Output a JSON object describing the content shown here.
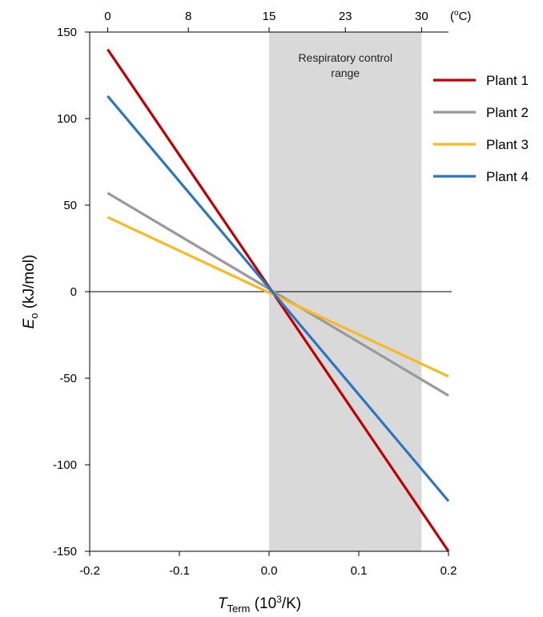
{
  "chart_data": {
    "type": "line",
    "xlabel": {
      "main": "T",
      "sub": "Term",
      "unit_open": " (10",
      "unit_sup": "3",
      "unit_close": "/K)"
    },
    "ylabel": {
      "main": "E",
      "sub": "o",
      "unit": " (kJ/mol)"
    },
    "xlim": [
      -0.2,
      0.2
    ],
    "ylim": [
      -150,
      150
    ],
    "x_ticks": [
      -0.2,
      -0.1,
      0.0,
      0.1,
      0.2
    ],
    "x_tick_labels": [
      "-0.2",
      "-0.1",
      "0.0",
      "0.1",
      "0.2"
    ],
    "y_ticks": [
      150,
      100,
      50,
      0,
      -50,
      -100,
      -150
    ],
    "y_tick_labels": [
      "150",
      "100",
      "50",
      "0",
      "-50",
      "-100",
      "-150"
    ],
    "top_axis": {
      "ticks": [
        -0.18,
        -0.09,
        0.0,
        0.085,
        0.17
      ],
      "labels": [
        "0",
        "8",
        "15",
        "23",
        "30"
      ],
      "unit_open": "(",
      "unit_sup": "o",
      "unit_close": "C)"
    },
    "shaded_region": {
      "x": [
        0.0,
        0.17
      ],
      "label_lines": [
        "Respiratory control",
        "range"
      ],
      "color": "#d9d9d9"
    },
    "zero_line": true,
    "legend_position": "right",
    "series": [
      {
        "name": "Plant 1",
        "color": "#c00000",
        "x": [
          -0.18,
          0.2
        ],
        "y": [
          140,
          -150
        ]
      },
      {
        "name": "Plant 2",
        "color": "#999999",
        "x": [
          -0.18,
          0.2
        ],
        "y": [
          57,
          -60
        ]
      },
      {
        "name": "Plant 3",
        "color": "#f7b924",
        "x": [
          -0.18,
          0.2
        ],
        "y": [
          43,
          -49
        ]
      },
      {
        "name": "Plant 4",
        "color": "#2e75c0",
        "x": [
          -0.18,
          0.2
        ],
        "y": [
          113,
          -121
        ]
      }
    ]
  }
}
